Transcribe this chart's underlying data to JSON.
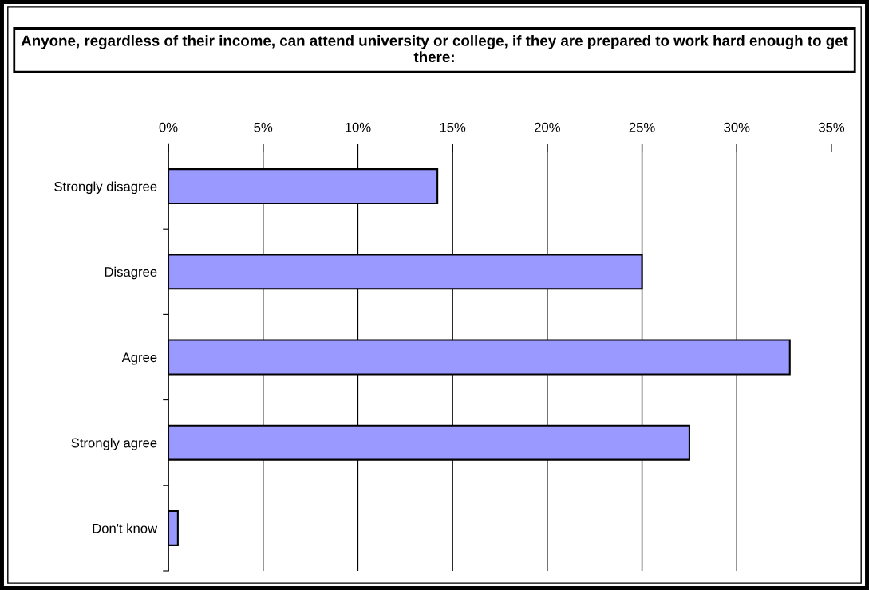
{
  "chart_data": {
    "type": "bar",
    "orientation": "horizontal",
    "title": "Anyone, regardless of their income, can attend university or college, if they are prepared to work hard enough to get there:",
    "categories": [
      "Strongly disagree",
      "Disagree",
      "Agree",
      "Strongly agree",
      "Don't know"
    ],
    "values": [
      14.2,
      25.0,
      32.8,
      27.5,
      0.5
    ],
    "color": "#9999ff",
    "xlim": [
      0,
      35
    ],
    "xticks": [
      {
        "value": 0,
        "label": "0%"
      },
      {
        "value": 5,
        "label": "5%"
      },
      {
        "value": 10,
        "label": "10%"
      },
      {
        "value": 15,
        "label": "15%"
      },
      {
        "value": 20,
        "label": "20%"
      },
      {
        "value": 25,
        "label": "25%"
      },
      {
        "value": 30,
        "label": "30%"
      },
      {
        "value": 35,
        "label": "35%"
      }
    ],
    "grid": "x",
    "legend": false
  }
}
